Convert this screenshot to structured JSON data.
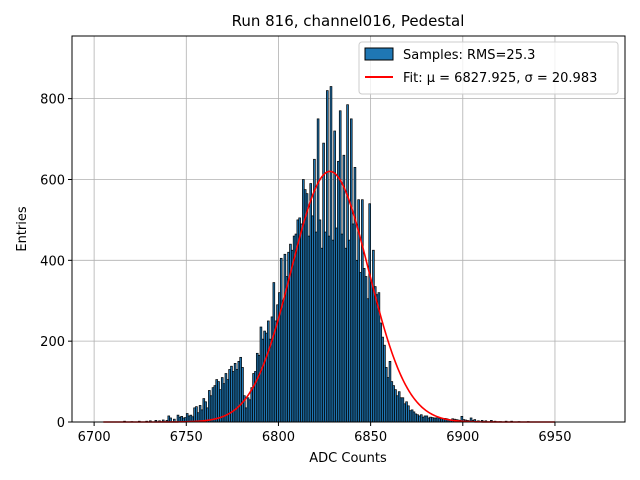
{
  "chart_data": {
    "type": "bar",
    "title": "Run 816, channel016, Pedestal",
    "xlabel": "ADC Counts",
    "ylabel": "Entries",
    "xlim": [
      6688,
      6988
    ],
    "ylim": [
      0,
      955
    ],
    "xticks": [
      6700,
      6750,
      6800,
      6850,
      6900,
      6950
    ],
    "yticks": [
      0,
      200,
      400,
      600,
      800
    ],
    "grid": true,
    "legend_position": "top-right",
    "histogram": {
      "name": "Samples: RMS=25.3",
      "color": "#1f77b4",
      "bin_width": 1,
      "bins": [
        [
          6716,
          2
        ],
        [
          6720,
          1
        ],
        [
          6724,
          2
        ],
        [
          6728,
          2
        ],
        [
          6730,
          3
        ],
        [
          6733,
          4
        ],
        [
          6735,
          3
        ],
        [
          6737,
          5
        ],
        [
          6739,
          4
        ],
        [
          6740,
          15
        ],
        [
          6741,
          10
        ],
        [
          6743,
          7
        ],
        [
          6745,
          17
        ],
        [
          6746,
          12
        ],
        [
          6747,
          14
        ],
        [
          6748,
          10
        ],
        [
          6749,
          11
        ],
        [
          6750,
          21
        ],
        [
          6751,
          15
        ],
        [
          6752,
          17
        ],
        [
          6753,
          13
        ],
        [
          6754,
          35
        ],
        [
          6755,
          38
        ],
        [
          6756,
          23
        ],
        [
          6757,
          41
        ],
        [
          6758,
          30
        ],
        [
          6759,
          58
        ],
        [
          6760,
          50
        ],
        [
          6761,
          35
        ],
        [
          6762,
          78
        ],
        [
          6763,
          65
        ],
        [
          6764,
          85
        ],
        [
          6765,
          90
        ],
        [
          6766,
          105
        ],
        [
          6767,
          100
        ],
        [
          6768,
          80
        ],
        [
          6769,
          110
        ],
        [
          6770,
          95
        ],
        [
          6771,
          120
        ],
        [
          6772,
          105
        ],
        [
          6773,
          130
        ],
        [
          6774,
          138
        ],
        [
          6775,
          125
        ],
        [
          6776,
          145
        ],
        [
          6777,
          130
        ],
        [
          6778,
          150
        ],
        [
          6779,
          160
        ],
        [
          6780,
          135
        ],
        [
          6781,
          65
        ],
        [
          6782,
          35
        ],
        [
          6783,
          60
        ],
        [
          6784,
          55
        ],
        [
          6785,
          85
        ],
        [
          6786,
          120
        ],
        [
          6787,
          125
        ],
        [
          6788,
          170
        ],
        [
          6789,
          165
        ],
        [
          6790,
          235
        ],
        [
          6791,
          205
        ],
        [
          6792,
          225
        ],
        [
          6793,
          220
        ],
        [
          6794,
          250
        ],
        [
          6795,
          205
        ],
        [
          6796,
          260
        ],
        [
          6797,
          345
        ],
        [
          6798,
          250
        ],
        [
          6799,
          290
        ],
        [
          6800,
          320
        ],
        [
          6801,
          405
        ],
        [
          6802,
          300
        ],
        [
          6803,
          415
        ],
        [
          6804,
          360
        ],
        [
          6805,
          420
        ],
        [
          6806,
          440
        ],
        [
          6807,
          425
        ],
        [
          6808,
          460
        ],
        [
          6809,
          465
        ],
        [
          6810,
          500
        ],
        [
          6811,
          505
        ],
        [
          6812,
          490
        ],
        [
          6813,
          600
        ],
        [
          6814,
          575
        ],
        [
          6815,
          565
        ],
        [
          6816,
          460
        ],
        [
          6817,
          590
        ],
        [
          6818,
          510
        ],
        [
          6819,
          650
        ],
        [
          6820,
          470
        ],
        [
          6821,
          750
        ],
        [
          6822,
          500
        ],
        [
          6823,
          430
        ],
        [
          6824,
          690
        ],
        [
          6825,
          470
        ],
        [
          6826,
          820
        ],
        [
          6827,
          460
        ],
        [
          6828,
          830
        ],
        [
          6829,
          450
        ],
        [
          6830,
          720
        ],
        [
          6831,
          480
        ],
        [
          6832,
          645
        ],
        [
          6833,
          770
        ],
        [
          6834,
          465
        ],
        [
          6835,
          660
        ],
        [
          6836,
          430
        ],
        [
          6837,
          785
        ],
        [
          6838,
          450
        ],
        [
          6839,
          750
        ],
        [
          6840,
          490
        ],
        [
          6841,
          630
        ],
        [
          6842,
          400
        ],
        [
          6843,
          550
        ],
        [
          6844,
          370
        ],
        [
          6845,
          550
        ],
        [
          6846,
          380
        ],
        [
          6847,
          360
        ],
        [
          6848,
          305
        ],
        [
          6849,
          540
        ],
        [
          6850,
          345
        ],
        [
          6851,
          425
        ],
        [
          6852,
          335
        ],
        [
          6853,
          315
        ],
        [
          6854,
          320
        ],
        [
          6855,
          245
        ],
        [
          6856,
          210
        ],
        [
          6857,
          190
        ],
        [
          6858,
          135
        ],
        [
          6859,
          110
        ],
        [
          6860,
          150
        ],
        [
          6861,
          100
        ],
        [
          6862,
          90
        ],
        [
          6863,
          80
        ],
        [
          6864,
          65
        ],
        [
          6865,
          75
        ],
        [
          6866,
          60
        ],
        [
          6867,
          60
        ],
        [
          6868,
          45
        ],
        [
          6869,
          50
        ],
        [
          6870,
          40
        ],
        [
          6871,
          28
        ],
        [
          6872,
          30
        ],
        [
          6873,
          25
        ],
        [
          6874,
          20
        ],
        [
          6875,
          18
        ],
        [
          6876,
          15
        ],
        [
          6877,
          18
        ],
        [
          6878,
          12
        ],
        [
          6879,
          15
        ],
        [
          6880,
          15
        ],
        [
          6881,
          10
        ],
        [
          6882,
          12
        ],
        [
          6883,
          11
        ],
        [
          6884,
          10
        ],
        [
          6885,
          10
        ],
        [
          6886,
          12
        ],
        [
          6887,
          9
        ],
        [
          6888,
          8
        ],
        [
          6889,
          9
        ],
        [
          6890,
          9
        ],
        [
          6891,
          8
        ],
        [
          6892,
          6
        ],
        [
          6893,
          5
        ],
        [
          6894,
          8
        ],
        [
          6895,
          7
        ],
        [
          6896,
          6
        ],
        [
          6897,
          5
        ],
        [
          6898,
          4
        ],
        [
          6899,
          14
        ],
        [
          6900,
          6
        ],
        [
          6901,
          5
        ],
        [
          6902,
          4
        ],
        [
          6903,
          3
        ],
        [
          6904,
          10
        ],
        [
          6905,
          4
        ],
        [
          6906,
          6
        ],
        [
          6907,
          2
        ],
        [
          6908,
          3
        ],
        [
          6910,
          4
        ],
        [
          6912,
          3
        ],
        [
          6915,
          4
        ],
        [
          6917,
          2
        ],
        [
          6920,
          1
        ],
        [
          6923,
          2
        ],
        [
          6926,
          2
        ],
        [
          6930,
          1
        ],
        [
          6935,
          1
        ]
      ]
    },
    "fit": {
      "name": "Fit: μ = 6827.925, σ = 20.983",
      "color": "#ff0000",
      "mu": 6827.925,
      "sigma": 20.983,
      "amplitude": 620,
      "x_range": [
        6705,
        6950
      ]
    }
  }
}
